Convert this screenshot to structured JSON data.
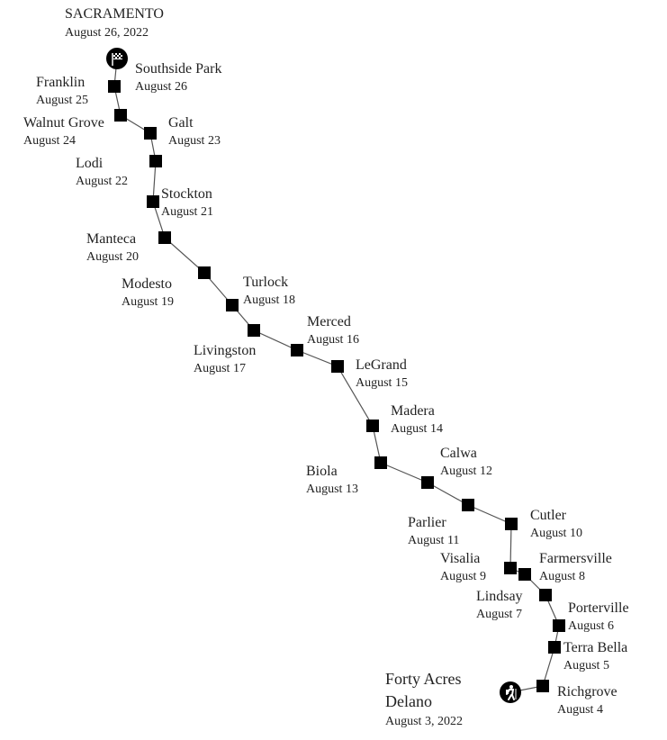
{
  "destination": {
    "name": "SACRAMENTO",
    "date": "August 26, 2022",
    "icon": "checkered-flag-icon"
  },
  "origin": {
    "name_line1": "Forty Acres",
    "name_line2": "Delano",
    "date": "August 3, 2022",
    "icon": "hiker-icon"
  },
  "colors": {
    "marker": "#000000",
    "route": "#555555",
    "text": "#222222"
  },
  "stops": [
    {
      "name": "Richgrove",
      "date": "August 4"
    },
    {
      "name": "Terra Bella",
      "date": "August 5"
    },
    {
      "name": "Porterville",
      "date": "August 6"
    },
    {
      "name": "Lindsay",
      "date": "August 7"
    },
    {
      "name": "Farmersville",
      "date": "August 8"
    },
    {
      "name": "Visalia",
      "date": "August 9"
    },
    {
      "name": "Cutler",
      "date": "August 10"
    },
    {
      "name": "Parlier",
      "date": "August 11"
    },
    {
      "name": "Calwa",
      "date": "August 12"
    },
    {
      "name": "Biola",
      "date": "August 13"
    },
    {
      "name": "Madera",
      "date": "August 14"
    },
    {
      "name": "LeGrand",
      "date": "August 15"
    },
    {
      "name": "Merced",
      "date": "August 16"
    },
    {
      "name": "Livingston",
      "date": "August 17"
    },
    {
      "name": "Turlock",
      "date": "August 18"
    },
    {
      "name": "Modesto",
      "date": "August 19"
    },
    {
      "name": "Manteca",
      "date": "August 20"
    },
    {
      "name": "Stockton",
      "date": "August 21"
    },
    {
      "name": "Lodi",
      "date": "August 22"
    },
    {
      "name": "Galt",
      "date": "August 23"
    },
    {
      "name": "Walnut Grove",
      "date": "August 24"
    },
    {
      "name": "Franklin",
      "date": "August 25"
    },
    {
      "name": "Southside Park",
      "date": "August 26"
    }
  ]
}
